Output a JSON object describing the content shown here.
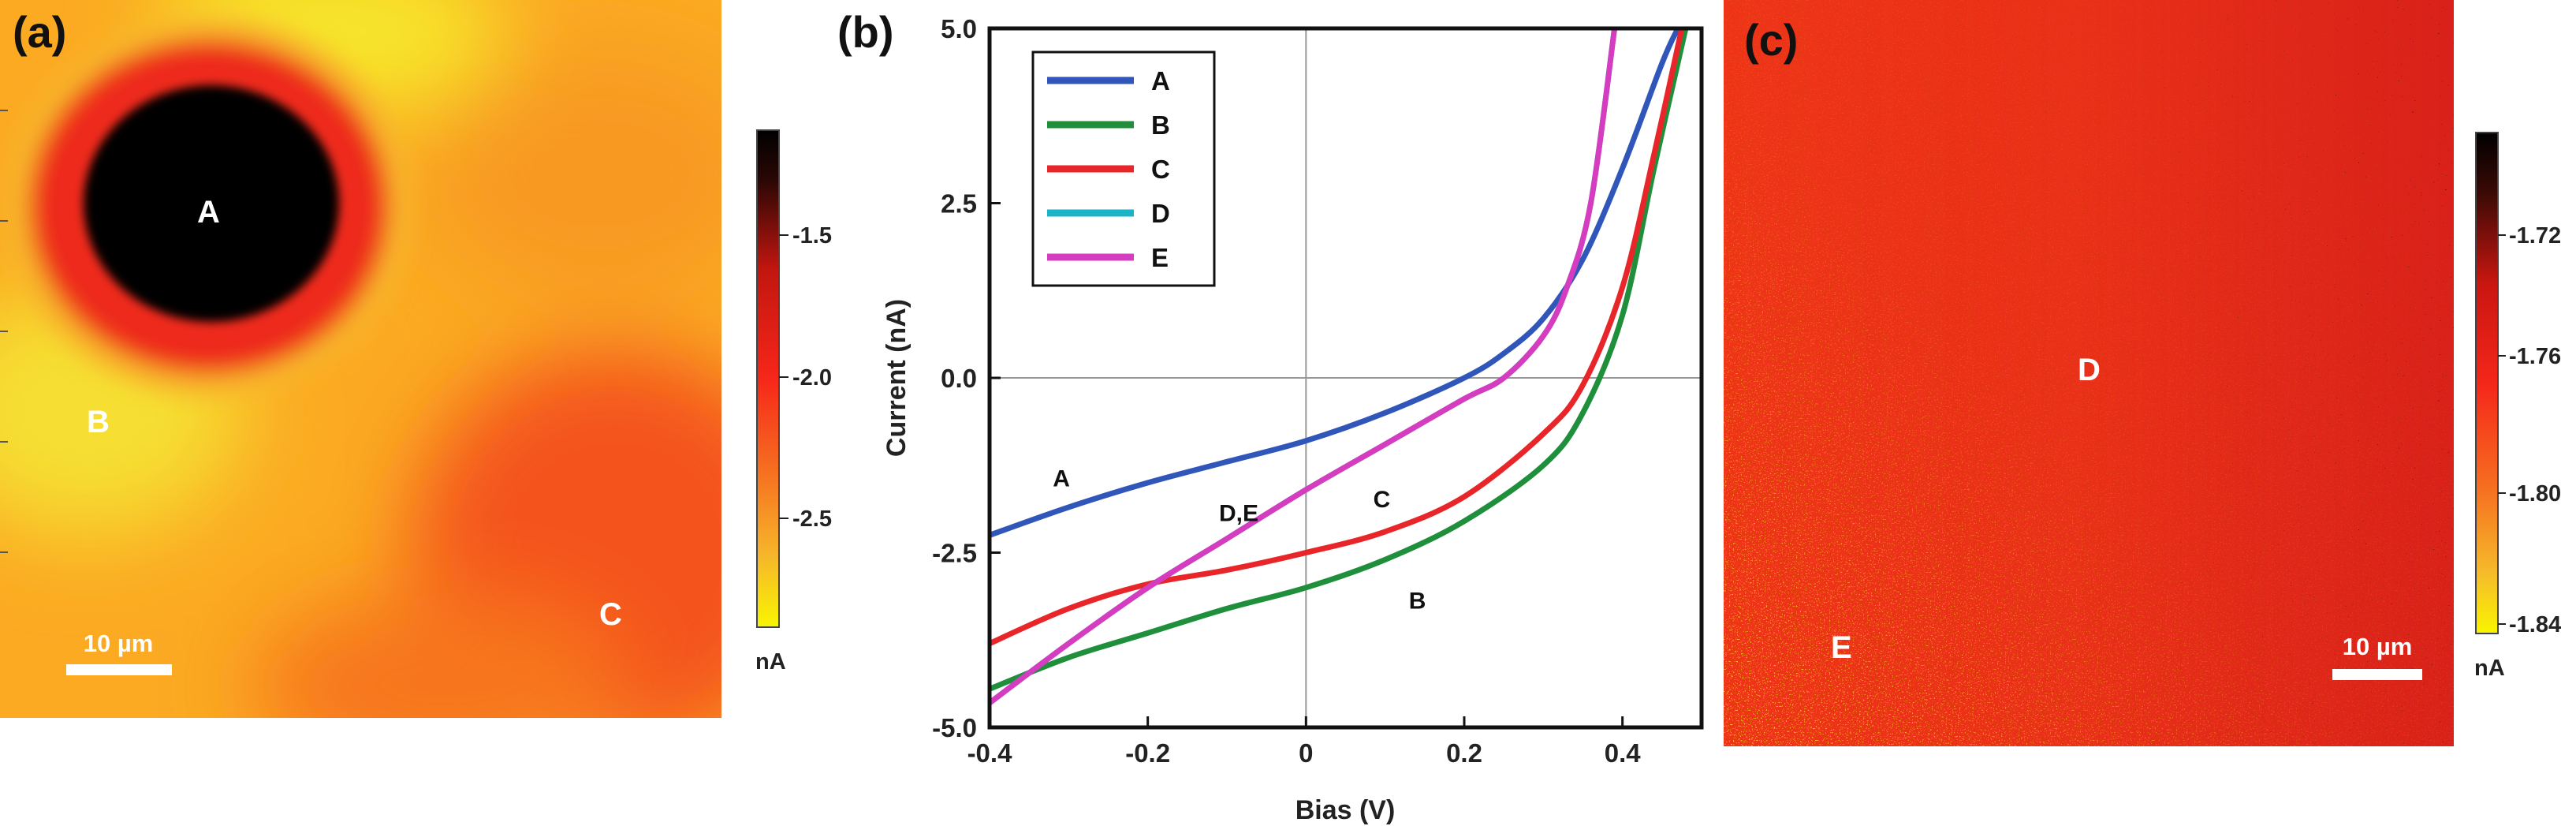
{
  "panels": {
    "a": {
      "label": "(a)",
      "points": [
        "A",
        "B",
        "C"
      ],
      "scalebar": "10 µm",
      "colorbar": {
        "ticks": [
          "-1.5",
          "-2.0",
          "-2.5"
        ],
        "unit": "nA",
        "colors": [
          "#000000",
          "#ff1a10",
          "#f8f400"
        ]
      }
    },
    "b": {
      "label": "(b)"
    },
    "c": {
      "label": "(c)",
      "points": [
        "D",
        "E"
      ],
      "scalebar": "10 µm",
      "colorbar": {
        "ticks": [
          "-1.72",
          "-1.76",
          "-1.80",
          "-1.84"
        ],
        "unit": "nA",
        "colors": [
          "#000000",
          "#ff1a10",
          "#f8f400"
        ]
      }
    }
  },
  "chart_data": [
    {
      "type": "heatmap",
      "panel": "(a)",
      "title": "",
      "colorbar_label": "nA",
      "colorbar_ticks": [
        -1.5,
        -2.0,
        -2.5
      ],
      "annotations": [
        "A",
        "B",
        "C"
      ],
      "scalebar": "10 µm"
    },
    {
      "type": "line",
      "panel": "(b)",
      "xlabel": "Bias (V)",
      "ylabel": "Current (nA)",
      "xlim": [
        -0.4,
        0.5
      ],
      "ylim": [
        -5.0,
        5.0
      ],
      "xticks": [
        -0.4,
        -0.2,
        0,
        0.2,
        0.4
      ],
      "yticks": [
        5.0,
        2.5,
        0.0,
        -2.5,
        -5.0
      ],
      "x_tick_labels": [
        "-0.4",
        "-0.2",
        "0",
        "0.2",
        "0.4"
      ],
      "y_tick_labels": [
        "5.0",
        "2.5",
        "0.0",
        "-2.5",
        "-5.0"
      ],
      "legend": "top-left",
      "series": [
        {
          "name": "A",
          "color": "#2f56b8",
          "points": [
            [
              -0.4,
              -2.25
            ],
            [
              -0.3,
              -1.85
            ],
            [
              -0.2,
              -1.5
            ],
            [
              -0.1,
              -1.2
            ],
            [
              0.0,
              -0.9
            ],
            [
              0.1,
              -0.5
            ],
            [
              0.2,
              0.0
            ],
            [
              0.25,
              0.35
            ],
            [
              0.3,
              0.85
            ],
            [
              0.35,
              1.7
            ],
            [
              0.4,
              3.0
            ],
            [
              0.45,
              4.5
            ],
            [
              0.47,
              5.0
            ]
          ]
        },
        {
          "name": "B",
          "color": "#1f8f3c",
          "points": [
            [
              -0.4,
              -4.45
            ],
            [
              -0.3,
              -4.0
            ],
            [
              -0.2,
              -3.65
            ],
            [
              -0.1,
              -3.3
            ],
            [
              0.0,
              -3.0
            ],
            [
              0.1,
              -2.6
            ],
            [
              0.2,
              -2.05
            ],
            [
              0.3,
              -1.25
            ],
            [
              0.35,
              -0.5
            ],
            [
              0.4,
              0.9
            ],
            [
              0.44,
              3.0
            ],
            [
              0.48,
              5.0
            ]
          ]
        },
        {
          "name": "C",
          "color": "#e8262a",
          "points": [
            [
              -0.4,
              -3.8
            ],
            [
              -0.3,
              -3.3
            ],
            [
              -0.2,
              -2.95
            ],
            [
              -0.1,
              -2.75
            ],
            [
              0.0,
              -2.5
            ],
            [
              0.1,
              -2.2
            ],
            [
              0.2,
              -1.7
            ],
            [
              0.3,
              -0.8
            ],
            [
              0.35,
              -0.1
            ],
            [
              0.4,
              1.3
            ],
            [
              0.44,
              3.2
            ],
            [
              0.475,
              5.0
            ]
          ]
        },
        {
          "name": "D",
          "color": "#1bb3c6",
          "points": [
            [
              -0.4,
              -4.65
            ],
            [
              -0.3,
              -3.8
            ],
            [
              -0.2,
              -3.0
            ],
            [
              -0.1,
              -2.3
            ],
            [
              0.0,
              -1.6
            ],
            [
              0.1,
              -0.95
            ],
            [
              0.2,
              -0.3
            ],
            [
              0.25,
              0.0
            ],
            [
              0.3,
              0.6
            ],
            [
              0.33,
              1.3
            ],
            [
              0.36,
              2.5
            ],
            [
              0.39,
              5.0
            ]
          ]
        },
        {
          "name": "E",
          "color": "#d63cc0",
          "points": [
            [
              -0.4,
              -4.65
            ],
            [
              -0.3,
              -3.8
            ],
            [
              -0.2,
              -3.0
            ],
            [
              -0.1,
              -2.3
            ],
            [
              0.0,
              -1.6
            ],
            [
              0.1,
              -0.95
            ],
            [
              0.2,
              -0.3
            ],
            [
              0.25,
              0.0
            ],
            [
              0.3,
              0.6
            ],
            [
              0.33,
              1.3
            ],
            [
              0.36,
              2.5
            ],
            [
              0.39,
              5.0
            ]
          ]
        }
      ],
      "annotations": [
        {
          "text": "A",
          "x": -0.32,
          "y": -1.55
        },
        {
          "text": "D,E",
          "x": -0.11,
          "y": -2.05
        },
        {
          "text": "C",
          "x": 0.085,
          "y": -1.85
        },
        {
          "text": "B",
          "x": 0.13,
          "y": -3.3
        }
      ]
    },
    {
      "type": "heatmap",
      "panel": "(c)",
      "title": "",
      "colorbar_label": "nA",
      "colorbar_ticks": [
        -1.72,
        -1.76,
        -1.8,
        -1.84
      ],
      "annotations": [
        "D",
        "E"
      ],
      "scalebar": "10 µm"
    }
  ]
}
